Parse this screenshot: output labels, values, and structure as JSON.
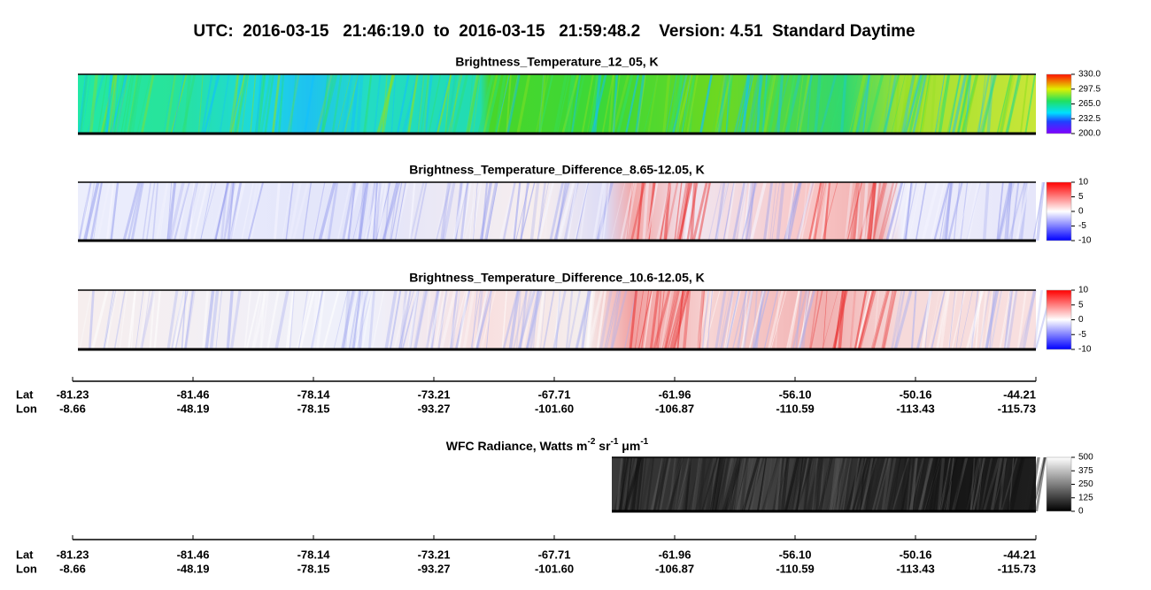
{
  "title": "UTC:  2016-03-15   21:46:19.0  to  2016-03-15   21:59:48.2    Version: 4.51  Standard Daytime",
  "panels": [
    {
      "title": "Brightness_Temperature_12_05, K",
      "clim": [
        200,
        330
      ],
      "colorbar_ticks": [
        {
          "value": 330,
          "label": "330.0"
        },
        {
          "value": 297.5,
          "label": "297.5"
        },
        {
          "value": 265,
          "label": "265.0"
        },
        {
          "value": 232.5,
          "label": "232.5"
        },
        {
          "value": 200,
          "label": "200.0"
        }
      ]
    },
    {
      "title": "Brightness_Temperature_Difference_8.65-12.05, K",
      "clim": [
        -10,
        10
      ],
      "colorbar_ticks": [
        10,
        5,
        0,
        -5,
        -10
      ]
    },
    {
      "title": "Brightness_Temperature_Difference_10.6-12.05, K",
      "clim": [
        -10,
        10
      ],
      "colorbar_ticks": [
        10,
        5,
        0,
        -5,
        -10
      ]
    }
  ],
  "wfc": {
    "title_parts": [
      "WFC Radiance, Watts m",
      "-2",
      " sr",
      "-1",
      " μm",
      "-1"
    ],
    "clim": [
      0,
      500
    ],
    "colorbar_ticks": [
      500,
      375,
      250,
      125,
      0
    ]
  },
  "axis": {
    "lat_label": "Lat",
    "lon_label": "Lon",
    "lat": [
      -81.23,
      -81.46,
      -78.14,
      -73.21,
      -67.71,
      -61.96,
      {
        "value": -56.1,
        "label": "-56.10"
      },
      -50.16,
      -44.21
    ],
    "lon": [
      -8.66,
      -48.19,
      -78.15,
      -93.27,
      {
        "value": -101.6,
        "label": "-101.60"
      },
      -106.87,
      -110.59,
      -113.43,
      -115.73
    ]
  }
}
